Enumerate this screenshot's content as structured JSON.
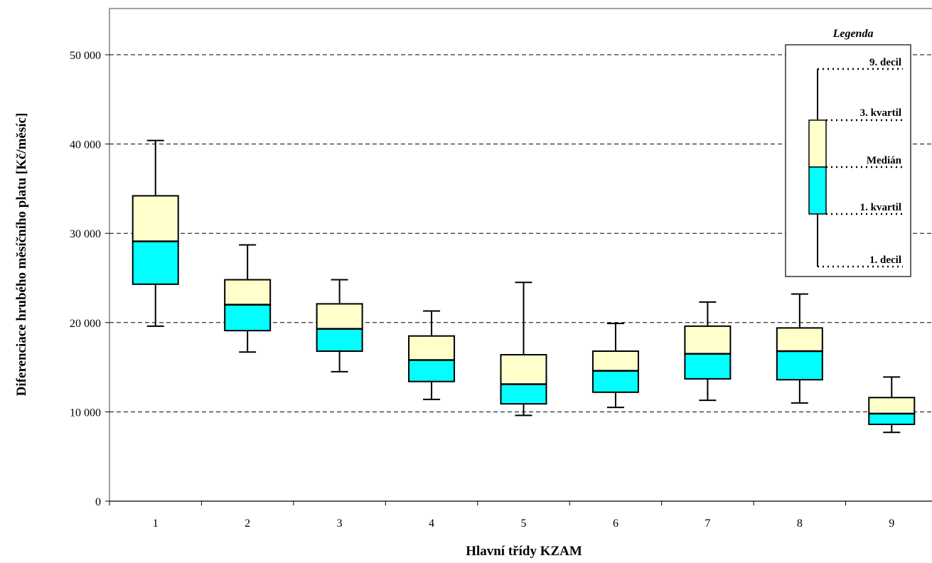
{
  "chart_data": {
    "type": "box",
    "xlabel": "Hlavní třídy KZAM",
    "ylabel": "Diferenciace hrubého měsíčního platu [Kč/měsíc]",
    "ylim": [
      0,
      55000
    ],
    "yticks": [
      0,
      10000,
      20000,
      30000,
      40000,
      50000
    ],
    "ytick_labels": [
      "0",
      "10 000",
      "20 000",
      "30 000",
      "40 000",
      "50 000"
    ],
    "grid": "horizontal dashed",
    "categories": [
      "1",
      "2",
      "3",
      "4",
      "5",
      "6",
      "7",
      "8",
      "9"
    ],
    "series": [
      {
        "category": "1",
        "d1": 19600,
        "q1": 24300,
        "median": 29100,
        "q3": 34200,
        "d9": 40400
      },
      {
        "category": "2",
        "d1": 16700,
        "q1": 19100,
        "median": 22000,
        "q3": 24800,
        "d9": 28700
      },
      {
        "category": "3",
        "d1": 14500,
        "q1": 16800,
        "median": 19300,
        "q3": 22100,
        "d9": 24800
      },
      {
        "category": "4",
        "d1": 11400,
        "q1": 13400,
        "median": 15800,
        "q3": 18500,
        "d9": 21300
      },
      {
        "category": "5",
        "d1": 9600,
        "q1": 10900,
        "median": 13100,
        "q3": 16400,
        "d9": 24500
      },
      {
        "category": "6",
        "d1": 10500,
        "q1": 12200,
        "median": 14600,
        "q3": 16800,
        "d9": 19900
      },
      {
        "category": "7",
        "d1": 11300,
        "q1": 13700,
        "median": 16500,
        "q3": 19600,
        "d9": 22300
      },
      {
        "category": "8",
        "d1": 11000,
        "q1": 13600,
        "median": 16800,
        "q3": 19400,
        "d9": 23200
      },
      {
        "category": "9",
        "d1": 7700,
        "q1": 8600,
        "median": 9800,
        "q3": 11600,
        "d9": 13900
      }
    ],
    "colors": {
      "upper_box": "#ffffcc",
      "lower_box": "#00ffff",
      "stroke": "#000000",
      "grid": "#000000"
    },
    "legend": {
      "title": "Legenda",
      "placement": "top-right",
      "labels": {
        "d9": "9. decil",
        "q3": "3. kvartil",
        "median": "Medián",
        "q1": "1. kvartil",
        "d1": "1. decil"
      }
    }
  }
}
